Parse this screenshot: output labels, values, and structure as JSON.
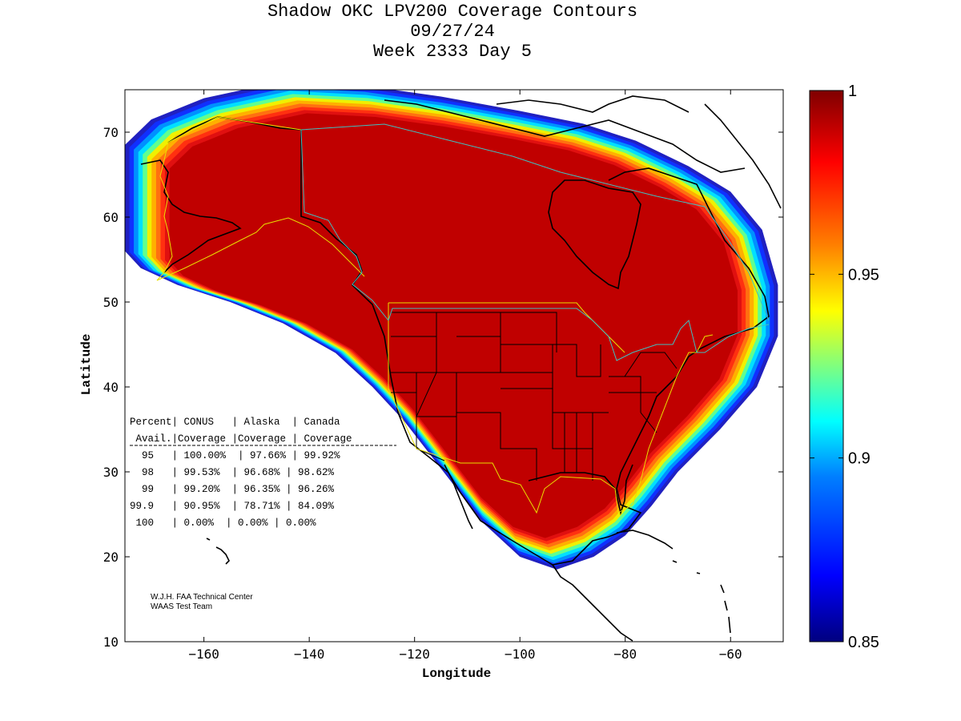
{
  "title": {
    "line1": "Shadow OKC LPV200 Coverage Contours",
    "line2": "09/27/24",
    "line3": "Week 2333 Day 5"
  },
  "axes": {
    "xlabel": "Longitude",
    "ylabel": "Latitude",
    "xlim": [
      -175,
      -50
    ],
    "ylim": [
      10,
      75
    ],
    "xticks": [
      -160,
      -140,
      -120,
      -100,
      -80,
      -60
    ],
    "yticks": [
      10,
      20,
      30,
      40,
      50,
      60,
      70
    ]
  },
  "colorbar": {
    "range": [
      0.85,
      1
    ],
    "ticks": [
      "1",
      "0.95",
      "0.9",
      "0.85"
    ],
    "colormap": [
      "#00007f",
      "#0000ff",
      "#007fff",
      "#00ffff",
      "#7fff7f",
      "#ffff00",
      "#ff7f00",
      "#ff0000",
      "#7f0000"
    ]
  },
  "coverage_colors": {
    "full": "#c00000",
    "band": [
      "#e01010",
      "#ff3010",
      "#ff7010",
      "#ffb000",
      "#f0f000",
      "#60ff90",
      "#00e0ff",
      "#0090ff",
      "#1030ff",
      "#2020c0"
    ]
  },
  "table": {
    "header1": "Percent| CONUS   | Alaska  | Canada",
    "header2": " Avail.|Coverage |Coverage | Coverage",
    "rows": [
      "  95   | 100.00%  | 97.66% | 99.92%",
      "  98   | 99.53%  | 96.68% | 98.62%",
      "  99   | 99.20%  | 96.35% | 96.26%",
      "99.9   | 90.95%  | 78.71% | 84.09%",
      " 100   | 0.00%  | 0.00% | 0.00%"
    ]
  },
  "credit": {
    "line1": "W.J.H. FAA Technical Center",
    "line2": "WAAS Test Team"
  }
}
